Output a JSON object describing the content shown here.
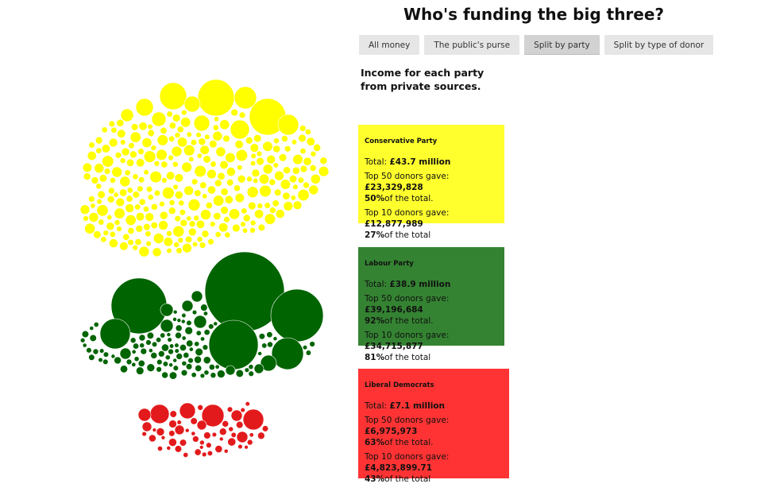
{
  "title": "Who's funding the big three?",
  "tabs": [
    {
      "label": "All money",
      "active": false
    },
    {
      "label": "The public's purse",
      "active": false
    },
    {
      "label": "Split by party",
      "active": true
    },
    {
      "label": "Split by type of donor",
      "active": false
    }
  ],
  "subtitle": "Income for each party from private sources.",
  "parties": [
    {
      "name": "Conservative Party",
      "total_label": "Total:",
      "total_value": "£43.7 million",
      "top50_prefix": "Top 50 donors gave:",
      "top50_amount": "£23,329,828",
      "top50_pct": "50%",
      "top50_suffix": "of the total.",
      "top10_prefix": "Top 10 donors gave:",
      "top10_amount": "£12,877,989",
      "top10_pct": "27%",
      "top10_suffix": "of the total",
      "color": "#ffff00",
      "card_color": "#ffff2e"
    },
    {
      "name": "Labour Party",
      "total_label": "Total:",
      "total_value": "£38.9 million",
      "top50_prefix": "Top 50 donors gave:",
      "top50_amount": "£39,196,684",
      "top50_pct": "92%",
      "top50_suffix": "of the total.",
      "top10_prefix": "Top 10 donors gave:",
      "top10_amount": "£34,715,877",
      "top10_pct": "81%",
      "top10_suffix": "of the total",
      "color": "#006400",
      "card_color": "#348332"
    },
    {
      "name": "Liberal Democrats",
      "total_label": "Total:",
      "total_value": "£7.1 million",
      "top50_prefix": "Top 50 donors gave:",
      "top50_amount": "£6,975,973",
      "top50_pct": "63%",
      "top50_suffix": "of the total.",
      "top10_prefix": "Top 10 donors gave:",
      "top10_amount": "£4,823,899.71",
      "top10_pct": "43%",
      "top10_suffix": "of the total",
      "color": "#e31a1c",
      "card_color": "#ff3333"
    }
  ],
  "chart_data": {
    "type": "scatter",
    "title": "",
    "series": [
      {
        "name": "Conservative Party",
        "color": "#ffff00",
        "total": 43.7
      },
      {
        "name": "Labour Party",
        "color": "#006400",
        "total": 38.9
      },
      {
        "name": "Liberal Democrats",
        "color": "#e31a1c",
        "total": 7.1
      }
    ]
  }
}
